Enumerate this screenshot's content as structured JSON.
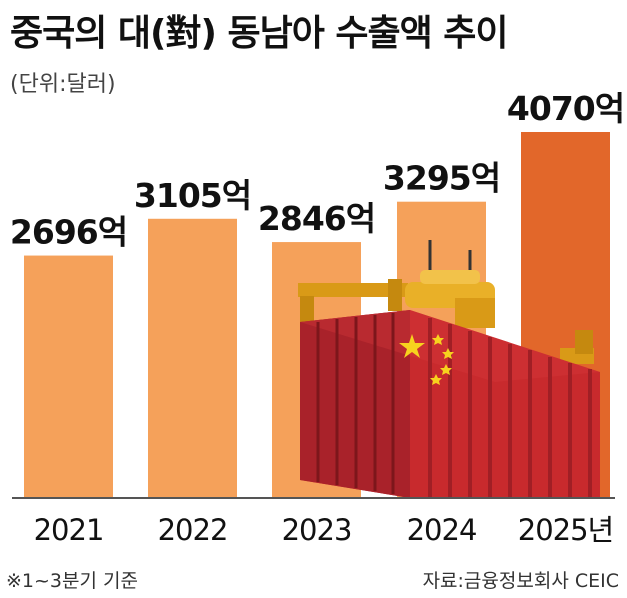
{
  "chart_data": {
    "type": "bar",
    "title": "중국의 대(對) 동남아 수출액 추이",
    "unit_note": "(단위:달러)",
    "categories": [
      "2021",
      "2022",
      "2023",
      "2024",
      "2025년"
    ],
    "values": [
      2696,
      3105,
      2846,
      3295,
      4070
    ],
    "value_labels": [
      "2696억",
      "3105억",
      "2846억",
      "3295억",
      "4070억"
    ],
    "ylim": [
      0,
      4070
    ],
    "colors": {
      "bar": "#f5a15a",
      "bar_highlight": "#e2672a",
      "axis": "#555555"
    },
    "footnote": "※1~3분기 기준",
    "source": "자료:금융정보회사 CEIC"
  },
  "illustration": {
    "icon": "shipping-container-crane-icon",
    "flag": "china-flag",
    "colors": {
      "container": "#c82a2d",
      "container_dark": "#8e1a1e",
      "star": "#f7d21e",
      "crane": "#e0a21a"
    }
  }
}
